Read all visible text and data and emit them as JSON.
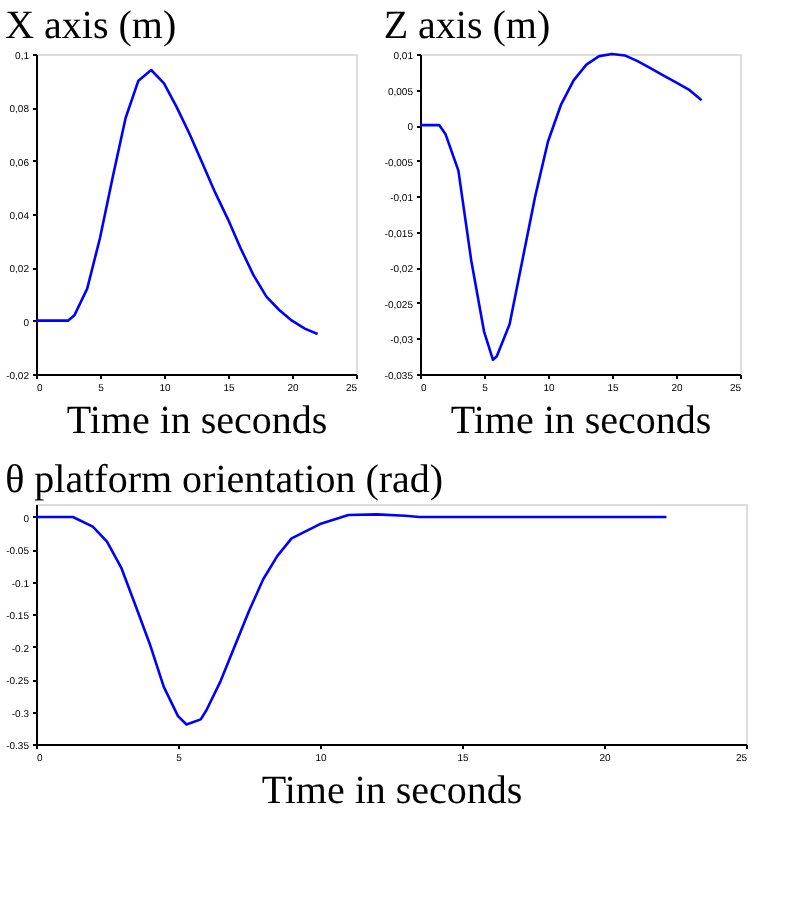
{
  "chart_data": [
    {
      "type": "line",
      "title": "X axis (m)",
      "xlabel": "Time in seconds",
      "xlim": [
        0,
        25
      ],
      "xticks": [
        0,
        5,
        10,
        15,
        20,
        25
      ],
      "ylim": [
        -0.02,
        0.1
      ],
      "yticks": [
        {
          "value": -0.02,
          "label": "-0,02"
        },
        0,
        {
          "value": 0.02,
          "label": "0,02"
        },
        {
          "value": 0.04,
          "label": "0,04"
        },
        {
          "value": 0.06,
          "label": "0,06"
        },
        {
          "value": 0.08,
          "label": "0,08"
        },
        {
          "value": 0.1,
          "label": "0,1"
        }
      ],
      "grid": false,
      "marker": "none",
      "line_style": "solid",
      "series": [
        {
          "color": "#0000ff",
          "x": [
            0,
            1,
            2,
            2.5,
            3,
            4,
            5,
            6,
            7,
            8,
            9,
            10,
            11,
            12,
            13,
            14,
            15,
            16,
            17,
            18,
            19,
            20,
            21,
            22
          ],
          "values": [
            0,
            0,
            0,
            0,
            0.002,
            0.012,
            0.031,
            0.054,
            0.076,
            0.09,
            0.094,
            0.089,
            0.08,
            0.07,
            0.059,
            0.048,
            0.038,
            0.027,
            0.017,
            0.009,
            0.004,
            0,
            -0.003,
            -0.005
          ]
        }
      ]
    },
    {
      "type": "line",
      "title": "Z axis (m)",
      "xlabel": "Time in seconds",
      "xlim": [
        0,
        25
      ],
      "xticks": [
        0,
        5,
        10,
        15,
        20,
        25
      ],
      "ylim": [
        -0.035,
        0.01
      ],
      "yticks": [
        {
          "value": -0.035,
          "label": "-0,035"
        },
        {
          "value": -0.03,
          "label": "-0,03"
        },
        {
          "value": -0.025,
          "label": "-0,025"
        },
        {
          "value": -0.02,
          "label": "-0,02"
        },
        {
          "value": -0.015,
          "label": "-0,015"
        },
        {
          "value": -0.01,
          "label": "-0,01"
        },
        {
          "value": -0.005,
          "label": "-0,005"
        },
        0,
        {
          "value": 0.005,
          "label": "0,005"
        },
        {
          "value": 0.01,
          "label": "0,01"
        }
      ],
      "grid": false,
      "marker": "none",
      "line_style": "solid",
      "series": [
        {
          "color": "#0000ff",
          "x": [
            0,
            1,
            1.5,
            2,
            3,
            4,
            5,
            5.7,
            6,
            7,
            8,
            9,
            10,
            11,
            12,
            13,
            14,
            15,
            16,
            17,
            18,
            19,
            20,
            21,
            22
          ],
          "values": [
            0,
            0,
            0,
            -0.0013,
            -0.0064,
            -0.019,
            -0.029,
            -0.033,
            -0.0325,
            -0.028,
            -0.019,
            -0.01,
            -0.0023,
            0.0028,
            0.0063,
            0.0085,
            0.0097,
            0.01,
            0.0098,
            0.009,
            0.008,
            0.007,
            0.006,
            0.005,
            0.0035
          ]
        }
      ]
    },
    {
      "type": "line",
      "title": "θ platform orientation (rad)",
      "xlabel": "Time in seconds",
      "xlim": [
        0,
        25
      ],
      "xticks": [
        0,
        5,
        10,
        15,
        20,
        25
      ],
      "ylim": [
        -0.35,
        0.02
      ],
      "yticks": [
        -0.35,
        -0.3,
        -0.25,
        -0.2,
        -0.15,
        -0.1,
        -0.05,
        0
      ],
      "grid": false,
      "marker": "none",
      "line_style": "solid",
      "series": [
        {
          "color": "#0000ff",
          "x": [
            0,
            1.3,
            2,
            2.5,
            3,
            3.5,
            4,
            4.5,
            5,
            5.3,
            5.8,
            6,
            6.5,
            7,
            7.5,
            8,
            8.5,
            9,
            10,
            11,
            12,
            13,
            13.5,
            22.2
          ],
          "values": [
            0,
            0,
            -0.015,
            -0.038,
            -0.078,
            -0.136,
            -0.195,
            -0.262,
            -0.307,
            -0.32,
            -0.312,
            -0.298,
            -0.253,
            -0.199,
            -0.145,
            -0.096,
            -0.06,
            -0.033,
            -0.011,
            0.003,
            0.004,
            0.002,
            0,
            0
          ]
        }
      ]
    }
  ]
}
